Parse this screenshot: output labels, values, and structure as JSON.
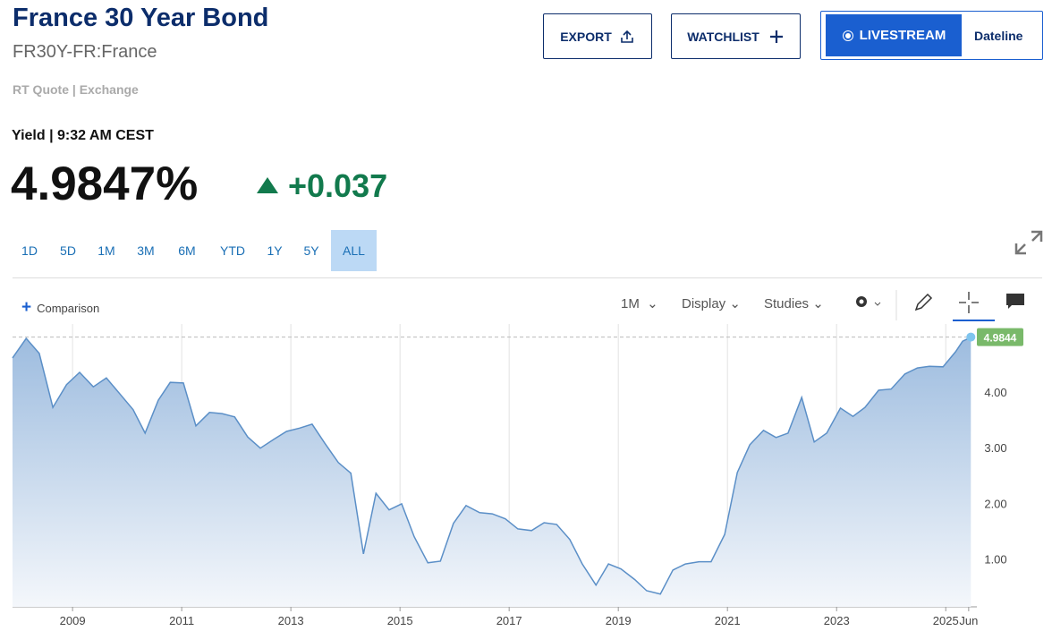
{
  "header": {
    "title": "France 30 Year Bond",
    "symbol": "FR30Y-FR:France",
    "quote_source": "RT Quote | Exchange",
    "buttons": {
      "export": "EXPORT",
      "watchlist": "WATCHLIST",
      "livestream": "LIVESTREAM",
      "dateline": "Dateline"
    }
  },
  "quote": {
    "label": "Yield | 9:32 AM CEST",
    "price": "4.9847%",
    "change": "+0.037"
  },
  "ranges": {
    "items": [
      "1D",
      "5D",
      "1M",
      "3M",
      "6M",
      "YTD",
      "1Y",
      "5Y",
      "ALL"
    ],
    "selected": "ALL"
  },
  "toolbar": {
    "comparison": "Comparison",
    "interval": "1M",
    "display": "Display",
    "studies": "Studies"
  },
  "chart_data": {
    "type": "area",
    "color": "#5b8fc7",
    "grid": "x",
    "x": [
      2007.9,
      2008.15,
      2008.39,
      2008.64,
      2008.89,
      2009.13,
      2009.38,
      2009.62,
      2009.87,
      2010.11,
      2010.33,
      2010.57,
      2010.79,
      2011.03,
      2011.26,
      2011.51,
      2011.74,
      2011.97,
      2012.21,
      2012.44,
      2012.69,
      2012.92,
      2013.16,
      2013.39,
      2013.62,
      2013.87,
      2014.1,
      2014.33,
      2014.56,
      2014.8,
      2015.03,
      2015.26,
      2015.51,
      2015.74,
      2015.98,
      2016.21,
      2016.46,
      2016.69,
      2016.93,
      2017.16,
      2017.41,
      2017.64,
      2017.87,
      2018.11,
      2018.34,
      2018.59,
      2018.82,
      2019.05,
      2019.3,
      2019.52,
      2019.77,
      2020.0,
      2020.23,
      2020.48,
      2020.7,
      2020.95,
      2021.18,
      2021.41,
      2021.66,
      2021.89,
      2022.11,
      2022.36,
      2022.59,
      2022.82,
      2023.07,
      2023.3,
      2023.52,
      2023.77,
      2024.0,
      2024.25,
      2024.48,
      2024.7,
      2024.95,
      2025.18,
      2025.31,
      2025.46
    ],
    "values": [
      4.61,
      4.96,
      4.69,
      3.72,
      4.13,
      4.35,
      4.09,
      4.25,
      3.96,
      3.68,
      3.26,
      3.85,
      4.17,
      4.16,
      3.39,
      3.63,
      3.61,
      3.55,
      3.19,
      2.99,
      3.15,
      3.29,
      3.35,
      3.42,
      3.08,
      2.73,
      2.54,
      1.09,
      2.18,
      1.88,
      1.99,
      1.4,
      0.93,
      0.96,
      1.64,
      1.96,
      1.83,
      1.81,
      1.72,
      1.54,
      1.51,
      1.65,
      1.62,
      1.35,
      0.91,
      0.53,
      0.91,
      0.82,
      0.63,
      0.43,
      0.37,
      0.8,
      0.91,
      0.95,
      0.95,
      1.44,
      2.55,
      3.05,
      3.31,
      3.18,
      3.26,
      3.9,
      3.1,
      3.26,
      3.71,
      3.56,
      3.72,
      4.03,
      4.05,
      4.32,
      4.43,
      4.46,
      4.45,
      4.72,
      4.91,
      4.98
    ],
    "last_value": 4.9844,
    "xlim": [
      2007.9,
      2025.57
    ],
    "xticks": [
      2009,
      2011,
      2013,
      2015,
      2017,
      2019,
      2021,
      2023,
      2025,
      {
        "value": 2025.42,
        "label": "Jun"
      }
    ],
    "ylim": [
      0.14,
      5.09
    ],
    "yticks": [
      {
        "value": 1,
        "label": "1.00"
      },
      {
        "value": 2,
        "label": "2.00"
      },
      {
        "value": 3,
        "label": "3.00"
      },
      {
        "value": 4,
        "label": "4.00"
      }
    ]
  }
}
